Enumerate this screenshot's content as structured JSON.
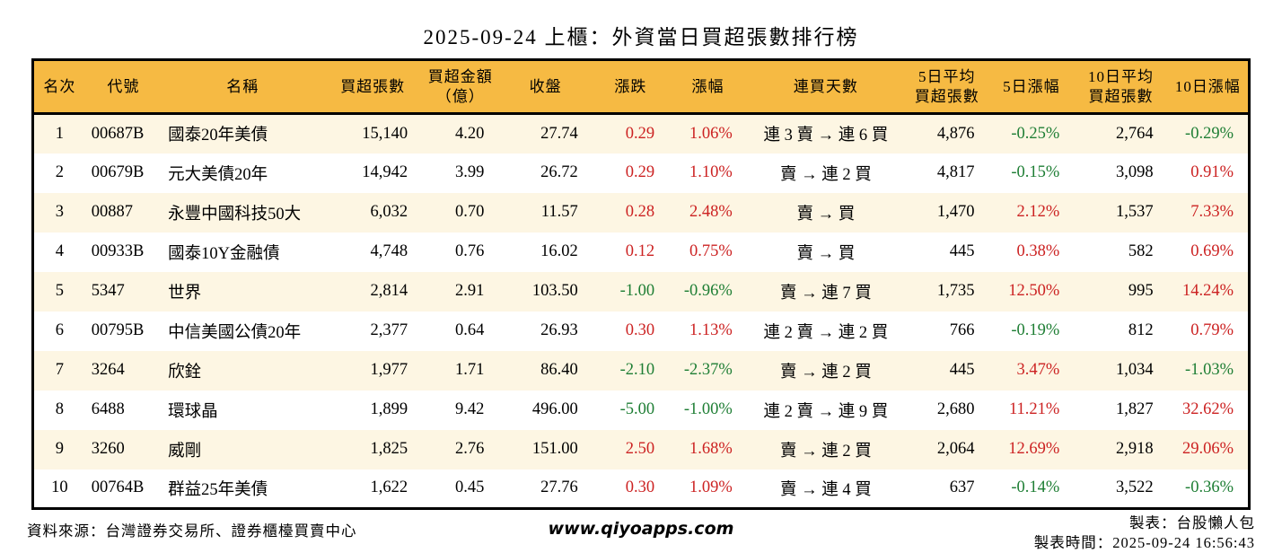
{
  "title": "2025-09-24 上櫃：外資當日買超張數排行榜",
  "table": {
    "headers": [
      "名次",
      "代號",
      "名稱",
      "買超張數",
      "買超金額\n（億）",
      "收盤",
      "漲跌",
      "漲幅",
      "連買天數",
      "5日平均\n買超張數",
      "5日漲幅",
      "10日平均\n買超張數",
      "10日漲幅"
    ],
    "rows": [
      [
        "1",
        "00687B",
        "國泰20年美債",
        "15,140",
        "4.20",
        "27.74",
        "0.29",
        "1.06%",
        "連 3 賣 → 連 6 買",
        "4,876",
        "-0.25%",
        "2,764",
        "-0.29%"
      ],
      [
        "2",
        "00679B",
        "元大美債20年",
        "14,942",
        "3.99",
        "26.72",
        "0.29",
        "1.10%",
        "賣 → 連 2 買",
        "4,817",
        "-0.15%",
        "3,098",
        "0.91%"
      ],
      [
        "3",
        "00887",
        "永豐中國科技50大",
        "6,032",
        "0.70",
        "11.57",
        "0.28",
        "2.48%",
        "賣 → 買",
        "1,470",
        "2.12%",
        "1,537",
        "7.33%"
      ],
      [
        "4",
        "00933B",
        "國泰10Y金融債",
        "4,748",
        "0.76",
        "16.02",
        "0.12",
        "0.75%",
        "賣 → 買",
        "445",
        "0.38%",
        "582",
        "0.69%"
      ],
      [
        "5",
        "5347",
        "世界",
        "2,814",
        "2.91",
        "103.50",
        "-1.00",
        "-0.96%",
        "賣 → 連 7 買",
        "1,735",
        "12.50%",
        "995",
        "14.24%"
      ],
      [
        "6",
        "00795B",
        "中信美國公債20年",
        "2,377",
        "0.64",
        "26.93",
        "0.30",
        "1.13%",
        "連 2 賣 → 連 2 買",
        "766",
        "-0.19%",
        "812",
        "0.79%"
      ],
      [
        "7",
        "3264",
        "欣銓",
        "1,977",
        "1.71",
        "86.40",
        "-2.10",
        "-2.37%",
        "賣 → 連 2 買",
        "445",
        "3.47%",
        "1,034",
        "-1.03%"
      ],
      [
        "8",
        "6488",
        "環球晶",
        "1,899",
        "9.42",
        "496.00",
        "-5.00",
        "-1.00%",
        "連 2 賣 → 連 9 買",
        "2,680",
        "11.21%",
        "1,827",
        "32.62%"
      ],
      [
        "9",
        "3260",
        "威剛",
        "1,825",
        "2.76",
        "151.00",
        "2.50",
        "1.68%",
        "賣 → 連 2 買",
        "2,064",
        "12.69%",
        "2,918",
        "29.06%"
      ],
      [
        "10",
        "00764B",
        "群益25年美債",
        "1,622",
        "0.45",
        "27.76",
        "0.30",
        "1.09%",
        "賣 → 連 4 買",
        "637",
        "-0.14%",
        "3,522",
        "-0.36%"
      ]
    ]
  },
  "footer": {
    "source": "資料來源：台灣證券交易所、證券櫃檯買賣中心",
    "website": "www.qiyoapps.com",
    "maker": "製表：台股懶人包",
    "made_time": "製表時間：2025-09-24 16:56:43"
  },
  "colors": {
    "header_bg": "#F6BA43",
    "row_alt_bg": "#FDF6E3",
    "up_red": "#CC2222",
    "down_green": "#1E7E34",
    "border": "#000000"
  }
}
